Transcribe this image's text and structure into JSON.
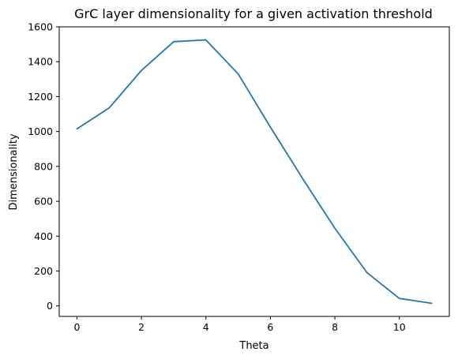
{
  "chart_data": {
    "type": "line",
    "title": "GrC layer dimensionality for a given activation threshold",
    "xlabel": "Theta",
    "ylabel": "Dimensionality",
    "xlim": [
      -0.55,
      11.55
    ],
    "ylim": [
      -60,
      1600
    ],
    "xticks": [
      0,
      2,
      4,
      6,
      8,
      10
    ],
    "yticks": [
      0,
      200,
      400,
      600,
      800,
      1000,
      1200,
      1400,
      1600
    ],
    "grid": false,
    "series": [
      {
        "color": "#1f77b4",
        "x": [
          0,
          1,
          2,
          3,
          4,
          5,
          6,
          7,
          8,
          9,
          10,
          11
        ],
        "y": [
          1015,
          1135,
          1350,
          1515,
          1525,
          1330,
          1025,
          730,
          445,
          190,
          43,
          15
        ]
      }
    ]
  }
}
